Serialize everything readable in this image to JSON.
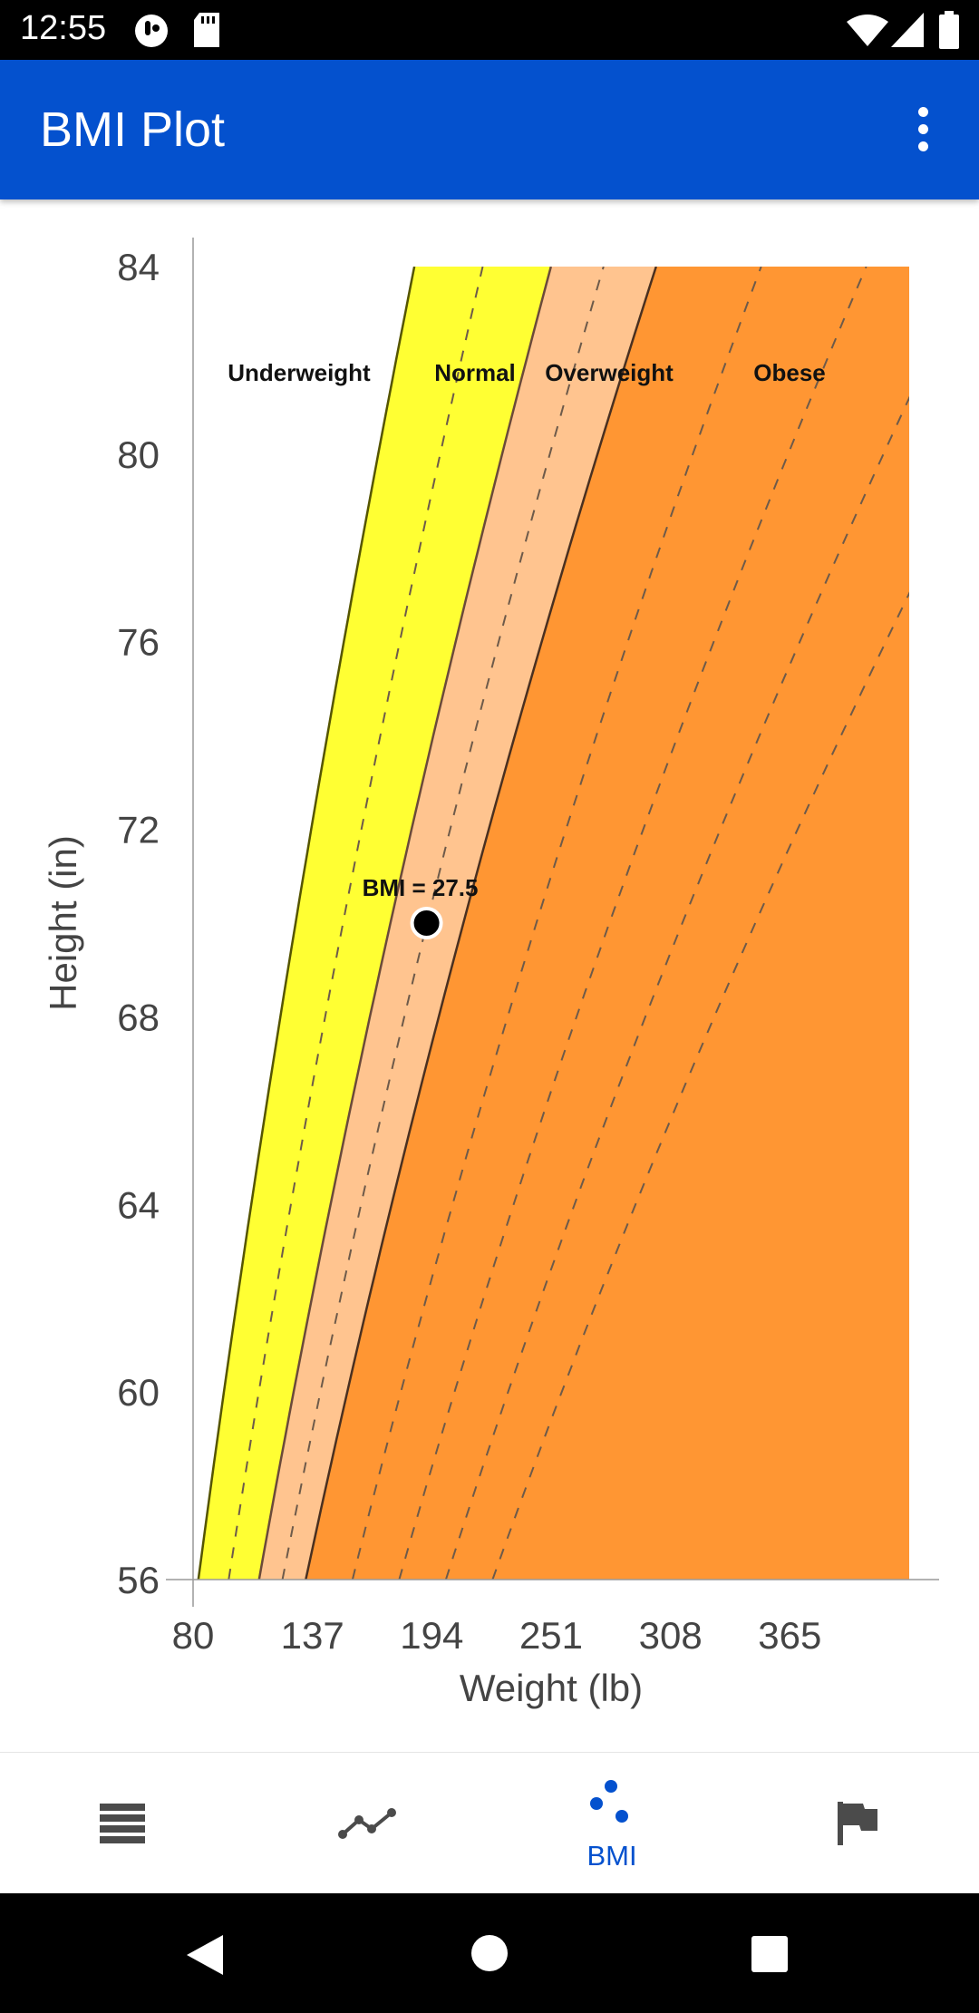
{
  "status_bar": {
    "time": "12:55"
  },
  "app_bar": {
    "title": "BMI Plot",
    "overflow_icon": "more-vert-icon"
  },
  "chart_data": {
    "type": "area",
    "xlabel": "Weight (lb)",
    "ylabel": "Height (in)",
    "xlim": [
      80,
      422
    ],
    "ylim": [
      56,
      84
    ],
    "x_ticks": [
      "80",
      "137",
      "194",
      "251",
      "308",
      "365"
    ],
    "y_ticks": [
      "84",
      "80",
      "76",
      "72",
      "68",
      "64",
      "60",
      "56"
    ],
    "regions": [
      {
        "name": "Underweight",
        "color": "#ffffff"
      },
      {
        "name": "Normal",
        "color": "#ffff33"
      },
      {
        "name": "Overweight",
        "color": "#ffc48f"
      },
      {
        "name": "Obese",
        "color": "#ff9633"
      }
    ],
    "boundary_bmi": [
      18.5,
      25,
      30
    ],
    "dashed_bmi": [
      21.75,
      27.5,
      35,
      40,
      45,
      50
    ],
    "point": {
      "weight": 191.5,
      "height": 70,
      "label": "BMI = 27.5"
    }
  },
  "bottom_nav": {
    "items": [
      {
        "icon": "list-icon",
        "label": ""
      },
      {
        "icon": "trend-line-icon",
        "label": ""
      },
      {
        "icon": "bmi-dots-icon",
        "label": "BMI"
      },
      {
        "icon": "flag-icon",
        "label": ""
      }
    ]
  }
}
